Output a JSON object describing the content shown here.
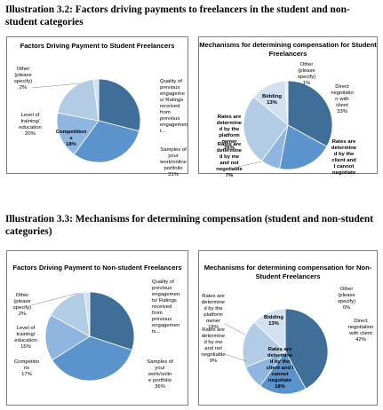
{
  "captions": {
    "c32": "Illustration 3.2: Factors driving payments to freelancers in the student and non-student categories",
    "c33": "Illustration 3.3: Mechanisms for determining compensation (student and non-student categories)"
  },
  "colors": {
    "dark": "#3f6f98",
    "mid": "#5b93cc",
    "light": "#8fb6e0",
    "pale": "#b3cce6",
    "verypale": "#d2e1f1"
  },
  "chart_data": [
    {
      "type": "pie",
      "title": "Factors Driving Payment to Student Freelancers",
      "labels": [
        "Quality of previous engagements/ Ratings received from previous engagements",
        "Samples of your work/online portfolio",
        "Competitions",
        "Level of training/ education",
        "Other (please specify)"
      ],
      "values": [
        29,
        31,
        18,
        20,
        2
      ]
    },
    {
      "type": "pie",
      "title": "Mechanisms for determining compensation for Student Freelancers",
      "labels": [
        "Direct negotiation with client",
        "Rates are determined by the client and I cannot negotiate",
        "Rates are determined by me and not negotiable",
        "Rates are determined by the platform owner",
        "Bidding",
        "Other (please specify)"
      ],
      "values": [
        33,
        20,
        7,
        26,
        13,
        1
      ]
    },
    {
      "type": "pie",
      "title": "Factors Driving Payment to Non-student Freelancers",
      "labels": [
        "Quality of previous engagements/ Ratings received from previous engagements",
        "Samples of your work/online portfolio",
        "Competitions",
        "Level of training/ education",
        "Other (please specify)"
      ],
      "values": [
        30,
        36,
        17,
        15,
        2
      ]
    },
    {
      "type": "pie",
      "title": "Mechanisms for determining compensation for Non-Student Freelancers",
      "labels": [
        "Direct negotiation with client",
        "Rates are determined by the client and I cannot negotiate",
        "Rates are determined by me and not negotiable",
        "Rates are determined by the platform owner",
        "Bidding",
        "Other (please specify)"
      ],
      "values": [
        42,
        18,
        9,
        18,
        13,
        0
      ]
    }
  ],
  "text": {
    "p1": {
      "title": "Factors Driving Payment to Student Freelancers",
      "quality": [
        "Quality of",
        "previous",
        "engageme",
        "s/ Ratings",
        "received",
        "from",
        "previous",
        "engagemen",
        "t..."
      ],
      "samples": [
        "Samples of",
        "your",
        "work/online",
        "portfolio",
        "31%"
      ],
      "competition": [
        "Competition",
        "s",
        "18%"
      ],
      "level": [
        "Level of",
        "training/",
        "education",
        "20%"
      ],
      "other": [
        "Other",
        "(please",
        "specify)",
        "2%"
      ]
    },
    "p2": {
      "title": "Mechanisms for determining compensation for Student Freelancers",
      "other": [
        "Other",
        "(please",
        "specify)",
        "1%"
      ],
      "bidding": [
        "Bidding",
        "13%"
      ],
      "direct": [
        "Direct",
        "negotiatio",
        "n with",
        "client",
        "33%"
      ],
      "platform": [
        "Rates are",
        "determine",
        "d by the",
        "platform",
        "owner",
        "26%"
      ],
      "me": [
        "Rates are",
        "determine",
        "d by me",
        "and not",
        "negotiable",
        "7%"
      ],
      "client": [
        "Rates are",
        "determine",
        "d by the",
        "client and",
        "I cannot",
        "negotiate"
      ]
    },
    "p3": {
      "title": "Factors Driving Payment to Non-student Freelancers",
      "quality": [
        "Quality of",
        "previous",
        "engagemen",
        "ts/ Ratings",
        "received",
        "from",
        "previous",
        "engagemen",
        "ts..."
      ],
      "samples": [
        "Samples of",
        "your",
        "work/onlin",
        "e portfolio",
        "36%"
      ],
      "competition": [
        "Competitio",
        "ns",
        "17%"
      ],
      "level": [
        "Level of",
        "training/",
        "education",
        "15%"
      ],
      "other": [
        "Other",
        "(please",
        "specify)",
        "2%"
      ]
    },
    "p4": {
      "title": "Mechanisms for determining compensation for Non-Student Freelancers",
      "other": [
        "Other",
        "(please",
        "specify)",
        "0%"
      ],
      "bidding": [
        "Bidding",
        "13%"
      ],
      "direct": [
        "Direct",
        "negotiation",
        "with client",
        "42%"
      ],
      "platform": [
        "Rates are",
        "determine",
        "d by the",
        "platform",
        "owner",
        "18%"
      ],
      "me": [
        "Rates are",
        "determine",
        "d by me",
        "and not",
        "negotiable",
        "9%"
      ],
      "client": [
        "Rates are",
        "determine",
        "d by the",
        "client and I",
        "cannot",
        "negotiate",
        "18%"
      ]
    }
  }
}
